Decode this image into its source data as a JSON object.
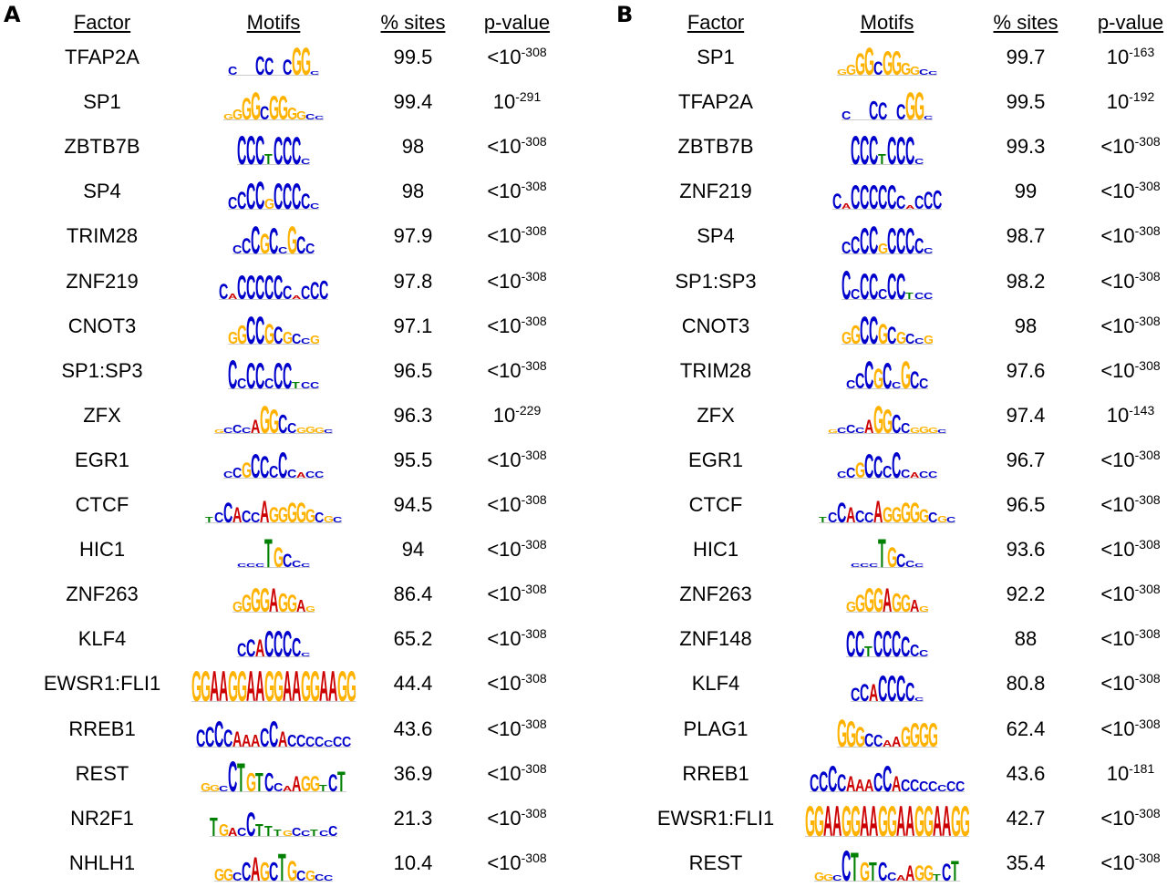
{
  "panels": [
    {
      "letter": "A",
      "headers": {
        "factor": "Factor",
        "motifs": "Motifs",
        "sites": "% sites",
        "pvalue": "p-value"
      },
      "rows": [
        {
          "factor": "TFAP2A",
          "sites": "99.5",
          "p_prefix": "<10",
          "p_exp": "-308",
          "logo": {
            "seq": "C__CC_CGGC",
            "h": [
              0.25,
              0.1,
              0.1,
              0.55,
              0.5,
              0.15,
              0.45,
              0.8,
              0.8,
              0.1
            ]
          }
        },
        {
          "factor": "SP1",
          "sites": "99.4",
          "p_prefix": "10",
          "p_exp": "-291",
          "logo": {
            "seq": "GGGGCGGGGCC",
            "h": [
              0.15,
              0.3,
              0.65,
              0.8,
              0.4,
              0.7,
              0.7,
              0.35,
              0.25,
              0.15,
              0.1
            ]
          }
        },
        {
          "factor": "ZBTB7B",
          "sites": "98",
          "p_prefix": "<10",
          "p_exp": "-308",
          "logo": {
            "seq": "CCCTCCCC",
            "h": [
              0.85,
              0.85,
              0.85,
              0.3,
              0.8,
              0.8,
              0.8,
              0.15
            ]
          }
        },
        {
          "factor": "SP4",
          "sites": "98",
          "p_prefix": "<10",
          "p_exp": "-308",
          "logo": {
            "seq": "CCCCGCCCCC",
            "h": [
              0.35,
              0.5,
              0.75,
              0.8,
              0.3,
              0.75,
              0.75,
              0.75,
              0.45,
              0.15
            ]
          }
        },
        {
          "factor": "TRIM28",
          "sites": "97.9",
          "p_prefix": "<10",
          "p_exp": "-308",
          "logo": {
            "seq": "CCCGCCGCC",
            "h": [
              0.25,
              0.45,
              0.8,
              0.6,
              0.75,
              0.2,
              0.8,
              0.5,
              0.3
            ]
          }
        },
        {
          "factor": "ZNF219",
          "sites": "97.8",
          "p_prefix": "<10",
          "p_exp": "-308",
          "logo": {
            "seq": "CACCCCCCACCC",
            "h": [
              0.45,
              0.15,
              0.7,
              0.7,
              0.7,
              0.7,
              0.7,
              0.4,
              0.1,
              0.4,
              0.5,
              0.55
            ]
          }
        },
        {
          "factor": "CNOT3",
          "sites": "97.1",
          "p_prefix": "<10",
          "p_exp": "-308",
          "logo": {
            "seq": "GGCCGCGCCG",
            "h": [
              0.35,
              0.55,
              0.8,
              0.8,
              0.6,
              0.5,
              0.35,
              0.3,
              0.15,
              0.25
            ]
          }
        },
        {
          "factor": "SP1:SP3",
          "sites": "96.5",
          "p_prefix": "<10",
          "p_exp": "-308",
          "logo": {
            "seq": "CCCCCCCTCC",
            "h": [
              0.85,
              0.3,
              0.75,
              0.75,
              0.3,
              0.75,
              0.75,
              0.2,
              0.2,
              0.2
            ]
          }
        },
        {
          "factor": "ZFX",
          "sites": "96.3",
          "p_prefix": "10",
          "p_exp": "-229",
          "logo": {
            "seq": "GCCCAGGCCGGGC",
            "h": [
              0.1,
              0.15,
              0.25,
              0.15,
              0.4,
              0.8,
              0.7,
              0.55,
              0.3,
              0.15,
              0.2,
              0.15,
              0.1
            ]
          }
        },
        {
          "factor": "EGR1",
          "sites": "95.5",
          "p_prefix": "<10",
          "p_exp": "-308",
          "logo": {
            "seq": "CCGCCCCCACC",
            "h": [
              0.2,
              0.3,
              0.45,
              0.7,
              0.65,
              0.35,
              0.75,
              0.25,
              0.15,
              0.2,
              0.2
            ]
          }
        },
        {
          "factor": "CTCF",
          "sites": "94.5",
          "p_prefix": "<10",
          "p_exp": "-308",
          "logo": {
            "seq": "TCCACCAGGGGGCGC",
            "h": [
              0.15,
              0.3,
              0.6,
              0.45,
              0.35,
              0.3,
              0.65,
              0.45,
              0.45,
              0.6,
              0.6,
              0.4,
              0.3,
              0.2,
              0.15
            ]
          }
        },
        {
          "factor": "HIC1",
          "sites": "94",
          "p_prefix": "<10",
          "p_exp": "-308",
          "logo": {
            "seq": "CCCTGCCC",
            "h": [
              0.1,
              0.1,
              0.1,
              0.85,
              0.6,
              0.4,
              0.2,
              0.1
            ]
          }
        },
        {
          "factor": "ZNF263",
          "sites": "86.4",
          "p_prefix": "<10",
          "p_exp": "-308",
          "logo": {
            "seq": "GGGGAGGAG",
            "h": [
              0.3,
              0.5,
              0.7,
              0.7,
              0.7,
              0.55,
              0.5,
              0.35,
              0.15
            ]
          }
        },
        {
          "factor": "KLF4",
          "sites": "65.2",
          "p_prefix": "<10",
          "p_exp": "-308",
          "logo": {
            "seq": "CCACCCCC",
            "h": [
              0.4,
              0.5,
              0.5,
              0.75,
              0.75,
              0.75,
              0.55,
              0.1
            ]
          }
        },
        {
          "factor": "EWSR1:FLI1",
          "sites": "44.4",
          "p_prefix": "<10",
          "p_exp": "-308",
          "logo": {
            "seq": "GGAAGGAAGGAAGGAAGG",
            "h": [
              0.9,
              0.9,
              0.9,
              0.9,
              0.9,
              0.9,
              0.9,
              0.9,
              0.9,
              0.9,
              0.9,
              0.9,
              0.9,
              0.9,
              0.9,
              0.9,
              0.9,
              0.9
            ]
          }
        },
        {
          "factor": "RREB1",
          "sites": "43.6",
          "p_prefix": "<10",
          "p_exp": "-308",
          "logo": {
            "seq": "CCCCAAACCACCCCCCC",
            "h": [
              0.5,
              0.6,
              0.75,
              0.5,
              0.45,
              0.35,
              0.35,
              0.55,
              0.75,
              0.45,
              0.35,
              0.35,
              0.3,
              0.3,
              0.2,
              0.3,
              0.3
            ]
          }
        },
        {
          "factor": "REST",
          "sites": "36.9",
          "p_prefix": "<10",
          "p_exp": "-308",
          "logo": {
            "seq": "GGCCTGTCCAAGGTCT",
            "h": [
              0.25,
              0.2,
              0.15,
              0.9,
              0.85,
              0.55,
              0.55,
              0.55,
              0.25,
              0.15,
              0.45,
              0.45,
              0.45,
              0.2,
              0.5,
              0.6
            ]
          }
        },
        {
          "factor": "NR2F1",
          "sites": "21.3",
          "p_prefix": "<10",
          "p_exp": "-308",
          "logo": {
            "seq": "TGACCTTTGCCTCC",
            "h": [
              0.55,
              0.35,
              0.25,
              0.25,
              0.7,
              0.35,
              0.3,
              0.2,
              0.15,
              0.25,
              0.15,
              0.2,
              0.15,
              0.3
            ]
          }
        },
        {
          "factor": "NHLH1",
          "sites": "10.4",
          "p_prefix": "<10",
          "p_exp": "-308",
          "logo": {
            "seq": "GGCCAGCTGCGCC",
            "h": [
              0.35,
              0.35,
              0.25,
              0.55,
              0.7,
              0.55,
              0.55,
              0.8,
              0.6,
              0.3,
              0.3,
              0.2,
              0.15
            ]
          }
        }
      ]
    },
    {
      "letter": "B",
      "headers": {
        "factor": "Factor",
        "motifs": "Motifs",
        "sites": "% sites",
        "pvalue": "p-value"
      },
      "rows": [
        {
          "factor": "SP1",
          "sites": "99.7",
          "p_prefix": "10",
          "p_exp": "-163",
          "logo": {
            "seq": "GGGGCGGGGCC",
            "h": [
              0.15,
              0.3,
              0.65,
              0.8,
              0.4,
              0.7,
              0.7,
              0.35,
              0.25,
              0.15,
              0.1
            ]
          }
        },
        {
          "factor": "TFAP2A",
          "sites": "99.5",
          "p_prefix": "10",
          "p_exp": "-192",
          "logo": {
            "seq": "C__CC_CGGC",
            "h": [
              0.25,
              0.1,
              0.1,
              0.55,
              0.5,
              0.15,
              0.45,
              0.8,
              0.8,
              0.1
            ]
          }
        },
        {
          "factor": "ZBTB7B",
          "sites": "99.3",
          "p_prefix": "<10",
          "p_exp": "-308",
          "logo": {
            "seq": "CCCTCCCC",
            "h": [
              0.85,
              0.85,
              0.85,
              0.3,
              0.8,
              0.8,
              0.8,
              0.15
            ]
          }
        },
        {
          "factor": "ZNF219",
          "sites": "99",
          "p_prefix": "<10",
          "p_exp": "-308",
          "logo": {
            "seq": "CACCCCCCACCC",
            "h": [
              0.45,
              0.15,
              0.7,
              0.7,
              0.7,
              0.7,
              0.7,
              0.4,
              0.1,
              0.4,
              0.5,
              0.55
            ]
          }
        },
        {
          "factor": "SP4",
          "sites": "98.7",
          "p_prefix": "<10",
          "p_exp": "-308",
          "logo": {
            "seq": "CCCCGCCCCC",
            "h": [
              0.35,
              0.5,
              0.75,
              0.8,
              0.3,
              0.75,
              0.75,
              0.75,
              0.45,
              0.15
            ]
          }
        },
        {
          "factor": "SP1:SP3",
          "sites": "98.2",
          "p_prefix": "<10",
          "p_exp": "-308",
          "logo": {
            "seq": "CCCCCCCTCC",
            "h": [
              0.85,
              0.3,
              0.75,
              0.75,
              0.3,
              0.75,
              0.75,
              0.2,
              0.2,
              0.2
            ]
          }
        },
        {
          "factor": "CNOT3",
          "sites": "98",
          "p_prefix": "<10",
          "p_exp": "-308",
          "logo": {
            "seq": "GGCCGCGCCG",
            "h": [
              0.35,
              0.55,
              0.8,
              0.8,
              0.6,
              0.5,
              0.35,
              0.3,
              0.15,
              0.25
            ]
          }
        },
        {
          "factor": "TRIM28",
          "sites": "97.6",
          "p_prefix": "<10",
          "p_exp": "-308",
          "logo": {
            "seq": "CCCGCCGCC",
            "h": [
              0.25,
              0.45,
              0.8,
              0.6,
              0.75,
              0.2,
              0.8,
              0.5,
              0.3
            ]
          }
        },
        {
          "factor": "ZFX",
          "sites": "97.4",
          "p_prefix": "10",
          "p_exp": "-143",
          "logo": {
            "seq": "GCCCAGGCCGGGC",
            "h": [
              0.1,
              0.15,
              0.25,
              0.15,
              0.4,
              0.8,
              0.7,
              0.55,
              0.3,
              0.15,
              0.2,
              0.15,
              0.1
            ]
          }
        },
        {
          "factor": "EGR1",
          "sites": "96.7",
          "p_prefix": "<10",
          "p_exp": "-308",
          "logo": {
            "seq": "CCGCCCCCACC",
            "h": [
              0.2,
              0.3,
              0.45,
              0.7,
              0.65,
              0.35,
              0.75,
              0.25,
              0.15,
              0.2,
              0.2
            ]
          }
        },
        {
          "factor": "CTCF",
          "sites": "96.5",
          "p_prefix": "<10",
          "p_exp": "-308",
          "logo": {
            "seq": "TCCACCAGGGGGCGC",
            "h": [
              0.15,
              0.3,
              0.6,
              0.45,
              0.35,
              0.3,
              0.65,
              0.45,
              0.45,
              0.6,
              0.6,
              0.4,
              0.3,
              0.2,
              0.15
            ]
          }
        },
        {
          "factor": "HIC1",
          "sites": "93.6",
          "p_prefix": "<10",
          "p_exp": "-308",
          "logo": {
            "seq": "CCCTGCCC",
            "h": [
              0.1,
              0.1,
              0.1,
              0.85,
              0.6,
              0.4,
              0.2,
              0.1
            ]
          }
        },
        {
          "factor": "ZNF263",
          "sites": "92.2",
          "p_prefix": "<10",
          "p_exp": "-308",
          "logo": {
            "seq": "GGGGAGGAG",
            "h": [
              0.3,
              0.5,
              0.7,
              0.7,
              0.7,
              0.55,
              0.5,
              0.35,
              0.15
            ]
          }
        },
        {
          "factor": "ZNF148",
          "sites": "88",
          "p_prefix": "<10",
          "p_exp": "-308",
          "logo": {
            "seq": "CCTCCCCCC",
            "h": [
              0.75,
              0.75,
              0.3,
              0.75,
              0.75,
              0.75,
              0.6,
              0.35,
              0.2
            ]
          }
        },
        {
          "factor": "KLF4",
          "sites": "80.8",
          "p_prefix": "<10",
          "p_exp": "-308",
          "logo": {
            "seq": "CCACCCCC",
            "h": [
              0.4,
              0.5,
              0.5,
              0.75,
              0.75,
              0.75,
              0.55,
              0.1
            ]
          }
        },
        {
          "factor": "PLAG1",
          "sites": "62.4",
          "p_prefix": "<10",
          "p_exp": "-308",
          "logo": {
            "seq": "GGGCCAAGGGG",
            "h": [
              0.8,
              0.75,
              0.6,
              0.4,
              0.35,
              0.2,
              0.3,
              0.6,
              0.7,
              0.7,
              0.7
            ]
          }
        },
        {
          "factor": "RREB1",
          "sites": "43.6",
          "p_prefix": "10",
          "p_exp": "-181",
          "logo": {
            "seq": "CCCCAAACCACCCCCCC",
            "h": [
              0.5,
              0.6,
              0.75,
              0.5,
              0.45,
              0.35,
              0.35,
              0.55,
              0.75,
              0.45,
              0.35,
              0.35,
              0.3,
              0.3,
              0.2,
              0.3,
              0.3
            ]
          }
        },
        {
          "factor": "EWSR1:FLI1",
          "sites": "42.7",
          "p_prefix": "<10",
          "p_exp": "-308",
          "logo": {
            "seq": "GGAAGGAAGGAAGGAAGG",
            "h": [
              0.9,
              0.9,
              0.9,
              0.9,
              0.9,
              0.9,
              0.9,
              0.9,
              0.9,
              0.9,
              0.9,
              0.9,
              0.9,
              0.9,
              0.9,
              0.9,
              0.9,
              0.9
            ]
          }
        },
        {
          "factor": "REST",
          "sites": "35.4",
          "p_prefix": "<10",
          "p_exp": "-308",
          "logo": {
            "seq": "GGCCTGTCCAAGGTCT",
            "h": [
              0.25,
              0.2,
              0.15,
              0.9,
              0.85,
              0.55,
              0.55,
              0.55,
              0.25,
              0.15,
              0.45,
              0.45,
              0.45,
              0.2,
              0.5,
              0.6
            ]
          }
        }
      ]
    }
  ],
  "base_colors": {
    "A": "#cc0000",
    "C": "#0000cc",
    "G": "#ffb300",
    "T": "#008000"
  }
}
